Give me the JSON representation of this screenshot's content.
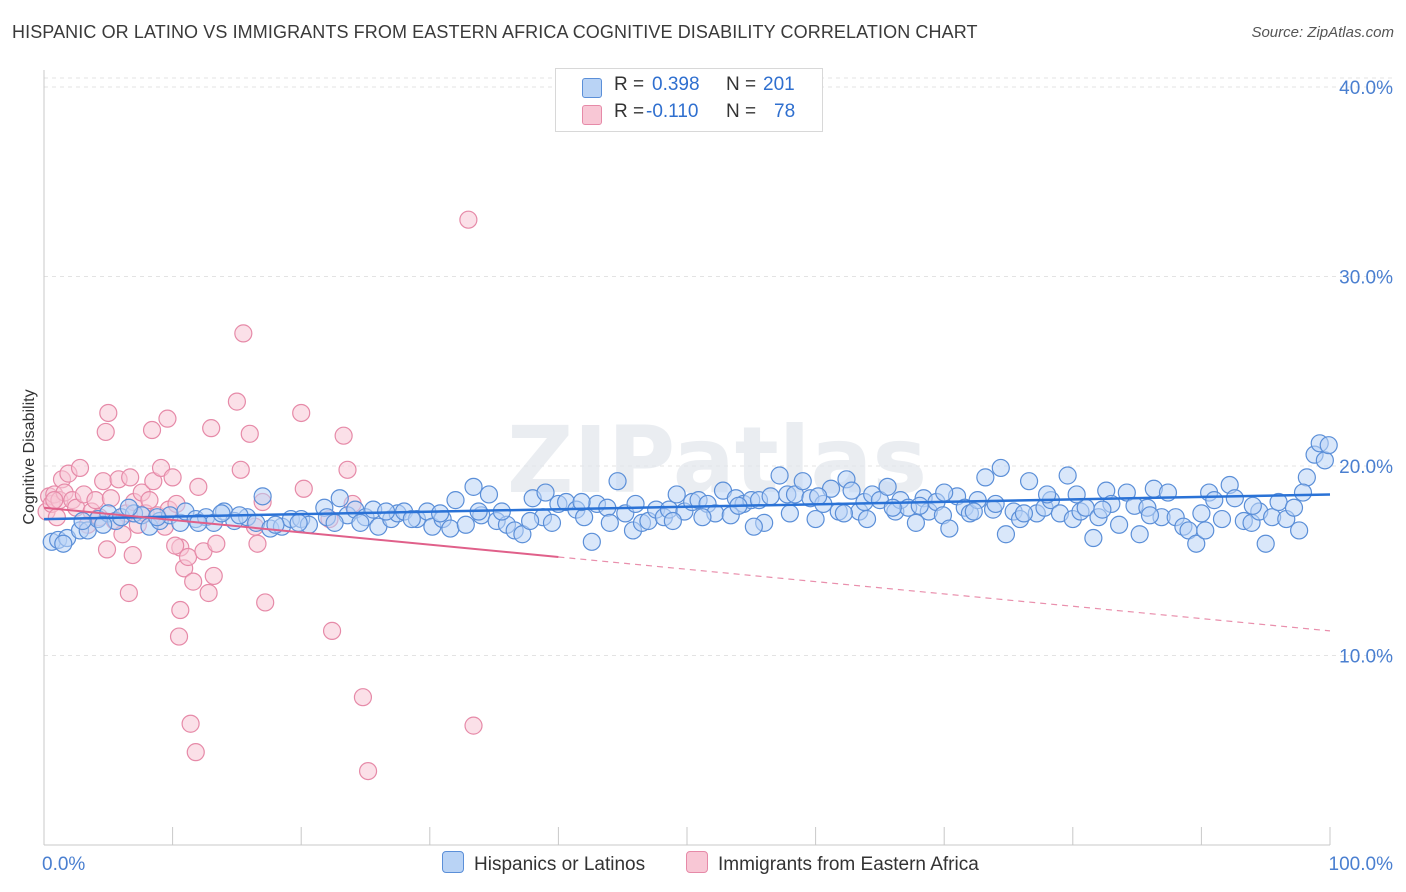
{
  "title": "HISPANIC OR LATINO VS IMMIGRANTS FROM EASTERN AFRICA COGNITIVE DISABILITY CORRELATION CHART",
  "source": "Source: ZipAtlas.com",
  "watermark": "ZIPatlas",
  "legend": {
    "rows": [
      {
        "r_label": "R =",
        "r_value": "0.398",
        "n_label": "N =",
        "n_value": "201"
      },
      {
        "r_label": "R =",
        "r_value": "-0.110",
        "n_label": "N =",
        "n_value": "78"
      }
    ]
  },
  "bottom_legend": {
    "series1": "Hispanics or Latinos",
    "series2": "Immigrants from Eastern Africa"
  },
  "colors": {
    "blue_fill": "#b9d3f5",
    "blue_stroke": "#5b8fd8",
    "blue_line": "#2a72d6",
    "pink_fill": "#f8c7d5",
    "pink_stroke": "#e68aa8",
    "pink_line": "#e0608a",
    "axis_text": "#4a7fd0",
    "grid": "#e3e3e3"
  },
  "chart_data": {
    "type": "scatter",
    "title": "HISPANIC OR LATINO VS IMMIGRANTS FROM EASTERN AFRICA COGNITIVE DISABILITY CORRELATION CHART",
    "xlabel": "",
    "ylabel": "Cognitive Disability",
    "xlim": [
      0,
      100
    ],
    "ylim": [
      0,
      40.9
    ],
    "x_tick_labels": [
      "0.0%",
      "100.0%"
    ],
    "y_ticks": [
      10,
      20,
      30,
      40
    ],
    "y_tick_labels": [
      "10.0%",
      "20.0%",
      "30.0%",
      "40.0%"
    ],
    "grid": true,
    "series": [
      {
        "name": "Hispanics or Latinos",
        "r": 0.398,
        "n": 201,
        "trend": {
          "x": [
            0,
            100
          ],
          "y": [
            17.2,
            18.5
          ]
        },
        "points": [
          [
            0.6,
            16.0
          ],
          [
            1.1,
            16.1
          ],
          [
            1.8,
            16.2
          ],
          [
            2.8,
            16.6
          ],
          [
            3.4,
            16.6
          ],
          [
            4.2,
            17.2
          ],
          [
            5.0,
            17.5
          ],
          [
            5.6,
            17.1
          ],
          [
            6.0,
            17.3
          ],
          [
            7.0,
            17.5
          ],
          [
            7.6,
            17.4
          ],
          [
            8.2,
            16.8
          ],
          [
            9.0,
            17.1
          ],
          [
            9.8,
            17.4
          ],
          [
            10.6,
            17.0
          ],
          [
            11.0,
            17.6
          ],
          [
            11.8,
            17.2
          ],
          [
            12.6,
            17.3
          ],
          [
            13.2,
            17.0
          ],
          [
            14.0,
            17.6
          ],
          [
            14.8,
            17.1
          ],
          [
            15.8,
            17.3
          ],
          [
            16.5,
            17.0
          ],
          [
            17.0,
            18.4
          ],
          [
            17.6,
            16.7
          ],
          [
            18.5,
            16.8
          ],
          [
            19.2,
            17.2
          ],
          [
            20.0,
            17.2
          ],
          [
            20.6,
            16.9
          ],
          [
            21.8,
            17.8
          ],
          [
            22.0,
            17.3
          ],
          [
            23.0,
            18.3
          ],
          [
            23.6,
            17.4
          ],
          [
            24.2,
            17.7
          ],
          [
            25.0,
            17.3
          ],
          [
            25.6,
            17.7
          ],
          [
            26.0,
            16.8
          ],
          [
            27.0,
            17.2
          ],
          [
            27.5,
            17.5
          ],
          [
            28.0,
            17.6
          ],
          [
            29.0,
            17.2
          ],
          [
            29.8,
            17.6
          ],
          [
            30.2,
            16.8
          ],
          [
            31.0,
            17.2
          ],
          [
            31.6,
            16.7
          ],
          [
            32.0,
            18.2
          ],
          [
            32.8,
            16.9
          ],
          [
            33.4,
            18.9
          ],
          [
            34.0,
            17.4
          ],
          [
            34.6,
            18.5
          ],
          [
            35.2,
            17.1
          ],
          [
            36.0,
            16.9
          ],
          [
            36.6,
            16.6
          ],
          [
            37.2,
            16.4
          ],
          [
            38.0,
            18.3
          ],
          [
            38.8,
            17.3
          ],
          [
            39.5,
            17.0
          ],
          [
            40.0,
            18.0
          ],
          [
            40.6,
            18.1
          ],
          [
            41.4,
            17.7
          ],
          [
            42.0,
            17.3
          ],
          [
            42.6,
            16.0
          ],
          [
            43.0,
            18.0
          ],
          [
            43.8,
            17.8
          ],
          [
            44.6,
            19.2
          ],
          [
            45.2,
            17.5
          ],
          [
            45.8,
            16.6
          ],
          [
            46.5,
            17.0
          ],
          [
            47.0,
            17.1
          ],
          [
            47.6,
            17.7
          ],
          [
            48.2,
            17.3
          ],
          [
            48.6,
            17.7
          ],
          [
            49.2,
            18.5
          ],
          [
            49.8,
            17.6
          ],
          [
            50.4,
            18.1
          ],
          [
            50.9,
            18.2
          ],
          [
            51.6,
            18.0
          ],
          [
            52.2,
            17.5
          ],
          [
            52.8,
            18.7
          ],
          [
            53.4,
            17.4
          ],
          [
            53.8,
            18.3
          ],
          [
            54.4,
            18.0
          ],
          [
            55.0,
            18.2
          ],
          [
            55.6,
            18.2
          ],
          [
            56.0,
            17.0
          ],
          [
            56.5,
            18.4
          ],
          [
            57.2,
            19.5
          ],
          [
            57.8,
            18.5
          ],
          [
            58.4,
            18.5
          ],
          [
            59.0,
            19.2
          ],
          [
            59.6,
            18.3
          ],
          [
            60.0,
            17.2
          ],
          [
            60.6,
            18.0
          ],
          [
            61.2,
            18.8
          ],
          [
            61.8,
            17.6
          ],
          [
            62.4,
            19.3
          ],
          [
            62.8,
            18.7
          ],
          [
            63.4,
            17.6
          ],
          [
            63.8,
            18.1
          ],
          [
            64.4,
            18.5
          ],
          [
            65.0,
            18.2
          ],
          [
            65.6,
            18.9
          ],
          [
            66.2,
            17.6
          ],
          [
            66.6,
            18.2
          ],
          [
            67.2,
            17.8
          ],
          [
            67.8,
            17.0
          ],
          [
            68.4,
            18.3
          ],
          [
            68.8,
            17.6
          ],
          [
            69.4,
            18.1
          ],
          [
            69.9,
            17.4
          ],
          [
            70.4,
            16.7
          ],
          [
            71.0,
            18.4
          ],
          [
            71.6,
            17.8
          ],
          [
            72.0,
            17.5
          ],
          [
            72.6,
            18.2
          ],
          [
            73.2,
            19.4
          ],
          [
            73.8,
            17.7
          ],
          [
            74.4,
            19.9
          ],
          [
            74.8,
            16.4
          ],
          [
            75.4,
            17.6
          ],
          [
            75.9,
            17.2
          ],
          [
            76.6,
            19.2
          ],
          [
            77.2,
            17.5
          ],
          [
            77.8,
            17.8
          ],
          [
            78.3,
            18.2
          ],
          [
            79.0,
            17.5
          ],
          [
            79.6,
            19.5
          ],
          [
            80.0,
            17.2
          ],
          [
            80.6,
            17.6
          ],
          [
            81.0,
            17.8
          ],
          [
            81.6,
            16.2
          ],
          [
            82.0,
            17.3
          ],
          [
            82.6,
            18.7
          ],
          [
            83.0,
            18.0
          ],
          [
            83.6,
            16.9
          ],
          [
            84.2,
            18.6
          ],
          [
            84.8,
            17.9
          ],
          [
            85.2,
            16.4
          ],
          [
            85.8,
            17.8
          ],
          [
            86.3,
            18.8
          ],
          [
            86.9,
            17.3
          ],
          [
            87.4,
            18.6
          ],
          [
            88.0,
            17.3
          ],
          [
            88.6,
            16.8
          ],
          [
            89.0,
            16.6
          ],
          [
            89.6,
            15.9
          ],
          [
            90.0,
            17.5
          ],
          [
            90.6,
            18.6
          ],
          [
            91.0,
            18.2
          ],
          [
            91.6,
            17.2
          ],
          [
            92.2,
            19.0
          ],
          [
            92.6,
            18.3
          ],
          [
            93.3,
            17.1
          ],
          [
            93.9,
            17.0
          ],
          [
            94.5,
            17.6
          ],
          [
            95.0,
            15.9
          ],
          [
            95.5,
            17.3
          ],
          [
            96.0,
            18.1
          ],
          [
            96.6,
            17.2
          ],
          [
            97.2,
            17.8
          ],
          [
            97.6,
            16.6
          ],
          [
            98.2,
            19.4
          ],
          [
            98.8,
            20.6
          ],
          [
            99.2,
            21.2
          ],
          [
            99.6,
            20.3
          ],
          [
            99.9,
            21.1
          ],
          [
            3.0,
            17.1
          ],
          [
            6.6,
            17.8
          ],
          [
            13.8,
            17.5
          ],
          [
            18.0,
            16.9
          ],
          [
            22.6,
            17.0
          ],
          [
            26.6,
            17.6
          ],
          [
            30.8,
            17.5
          ],
          [
            35.6,
            17.6
          ],
          [
            39.0,
            18.6
          ],
          [
            44.0,
            17.0
          ],
          [
            48.9,
            17.1
          ],
          [
            54.0,
            17.9
          ],
          [
            58.0,
            17.5
          ],
          [
            62.2,
            17.5
          ],
          [
            66.0,
            17.8
          ],
          [
            70.0,
            18.6
          ],
          [
            74.0,
            18.0
          ],
          [
            78.0,
            18.5
          ],
          [
            82.3,
            17.7
          ],
          [
            86.0,
            17.4
          ],
          [
            90.3,
            16.6
          ],
          [
            94.0,
            17.9
          ],
          [
            97.9,
            18.6
          ],
          [
            1.5,
            15.9
          ],
          [
            4.6,
            16.9
          ],
          [
            8.8,
            17.3
          ],
          [
            12.0,
            17.0
          ],
          [
            15.2,
            17.4
          ],
          [
            19.8,
            17.0
          ],
          [
            24.6,
            17.0
          ],
          [
            28.6,
            17.2
          ],
          [
            33.8,
            17.6
          ],
          [
            37.8,
            17.1
          ],
          [
            41.8,
            18.1
          ],
          [
            46.0,
            18.0
          ],
          [
            51.2,
            17.3
          ],
          [
            55.2,
            16.8
          ],
          [
            60.2,
            18.4
          ],
          [
            64.0,
            17.2
          ],
          [
            68.1,
            17.9
          ],
          [
            72.3,
            17.6
          ],
          [
            76.2,
            17.5
          ],
          [
            80.3,
            18.5
          ]
        ]
      },
      {
        "name": "Immigrants from Eastern Africa",
        "r": -0.11,
        "n": 78,
        "trend": {
          "x": [
            0,
            40
          ],
          "y": [
            17.8,
            15.2
          ]
        },
        "trend_dashed": {
          "x": [
            40,
            100
          ],
          "y": [
            15.2,
            11.3
          ]
        },
        "points": [
          [
            0.2,
            17.6
          ],
          [
            0.4,
            18.4
          ],
          [
            0.6,
            18.0
          ],
          [
            0.8,
            18.5
          ],
          [
            1.0,
            17.3
          ],
          [
            1.2,
            18.2
          ],
          [
            1.4,
            19.3
          ],
          [
            1.6,
            18.6
          ],
          [
            1.9,
            19.6
          ],
          [
            2.2,
            18.2
          ],
          [
            2.5,
            17.8
          ],
          [
            2.8,
            19.9
          ],
          [
            3.1,
            18.5
          ],
          [
            3.4,
            16.9
          ],
          [
            3.7,
            17.6
          ],
          [
            4.0,
            18.2
          ],
          [
            4.3,
            17.3
          ],
          [
            4.6,
            19.2
          ],
          [
            4.9,
            15.6
          ],
          [
            5.2,
            18.3
          ],
          [
            5.5,
            17.1
          ],
          [
            5.8,
            19.3
          ],
          [
            6.1,
            16.4
          ],
          [
            6.4,
            17.5
          ],
          [
            6.7,
            19.4
          ],
          [
            7.0,
            18.1
          ],
          [
            7.3,
            16.9
          ],
          [
            7.6,
            18.6
          ],
          [
            7.9,
            17.5
          ],
          [
            8.2,
            18.2
          ],
          [
            8.5,
            19.2
          ],
          [
            8.8,
            17.4
          ],
          [
            9.1,
            19.9
          ],
          [
            9.4,
            16.8
          ],
          [
            9.7,
            17.7
          ],
          [
            10.0,
            19.4
          ],
          [
            10.3,
            18.0
          ],
          [
            10.6,
            15.7
          ],
          [
            10.9,
            14.6
          ],
          [
            11.2,
            15.2
          ],
          [
            11.6,
            13.9
          ],
          [
            12.0,
            18.9
          ],
          [
            12.4,
            15.5
          ],
          [
            12.8,
            13.3
          ],
          [
            13.2,
            14.2
          ],
          [
            4.8,
            21.8
          ],
          [
            5.0,
            22.8
          ],
          [
            6.6,
            13.3
          ],
          [
            6.9,
            15.3
          ],
          [
            8.4,
            21.9
          ],
          [
            9.6,
            22.5
          ],
          [
            10.2,
            15.8
          ],
          [
            10.6,
            12.4
          ],
          [
            11.4,
            6.4
          ],
          [
            11.8,
            4.9
          ],
          [
            10.5,
            11.0
          ],
          [
            13.0,
            22.0
          ],
          [
            13.4,
            15.9
          ],
          [
            15.0,
            23.4
          ],
          [
            15.5,
            27.0
          ],
          [
            15.3,
            19.8
          ],
          [
            16.0,
            21.7
          ],
          [
            16.4,
            16.8
          ],
          [
            17.0,
            18.1
          ],
          [
            17.2,
            12.8
          ],
          [
            20.0,
            22.8
          ],
          [
            20.2,
            18.8
          ],
          [
            16.6,
            15.9
          ],
          [
            22.2,
            17.2
          ],
          [
            23.3,
            21.6
          ],
          [
            23.6,
            19.8
          ],
          [
            24.0,
            18.0
          ],
          [
            24.8,
            7.8
          ],
          [
            25.2,
            3.9
          ],
          [
            22.4,
            11.3
          ],
          [
            33.0,
            33.0
          ],
          [
            33.4,
            6.3
          ],
          [
            0.8,
            18.2
          ]
        ]
      }
    ]
  }
}
